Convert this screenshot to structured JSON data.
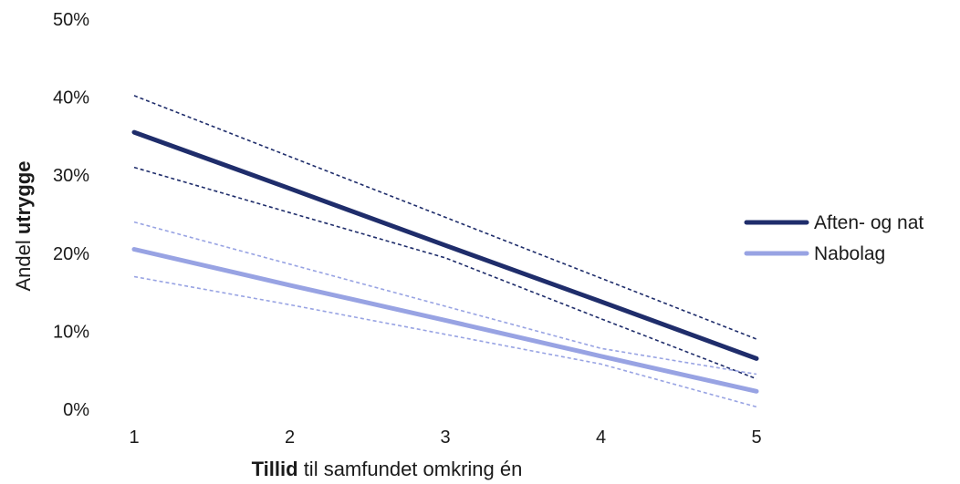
{
  "chart_data": {
    "type": "line",
    "x": [
      1,
      2,
      3,
      4,
      5
    ],
    "xlim": [
      1,
      5
    ],
    "ylim": [
      0,
      50
    ],
    "y_ticks": [
      {
        "value": 0,
        "label": "0%"
      },
      {
        "value": 10,
        "label": "10%"
      },
      {
        "value": 20,
        "label": "20%"
      },
      {
        "value": 30,
        "label": "30%"
      },
      {
        "value": 40,
        "label": "40%"
      },
      {
        "value": 50,
        "label": "50%"
      }
    ],
    "x_ticks": [
      {
        "value": 1,
        "label": "1"
      },
      {
        "value": 2,
        "label": "2"
      },
      {
        "value": 3,
        "label": "3"
      },
      {
        "value": 4,
        "label": "4"
      },
      {
        "value": 5,
        "label": "5"
      }
    ],
    "xlabel": {
      "bold": "Tillid",
      "rest": " til samfundet omkring én"
    },
    "ylabel": {
      "regular": "Andel ",
      "bold": "utrygge"
    },
    "grid": false,
    "legend_position": "right",
    "series": [
      {
        "name": "Aften- og nat",
        "color": "#1f2d6b",
        "values": [
          35.5,
          28.3,
          21.0,
          13.8,
          6.5
        ],
        "upper": [
          40.2,
          32.4,
          24.6,
          16.8,
          9.0
        ],
        "lower": [
          31.0,
          25.2,
          19.4,
          11.6,
          3.9
        ]
      },
      {
        "name": "Nabolag",
        "color": "#98a3e3",
        "values": [
          20.5,
          15.9,
          11.4,
          6.8,
          2.3
        ],
        "upper": [
          24.0,
          18.6,
          13.2,
          7.8,
          4.5
        ],
        "lower": [
          17.0,
          13.4,
          9.6,
          5.8,
          0.3
        ]
      }
    ]
  }
}
